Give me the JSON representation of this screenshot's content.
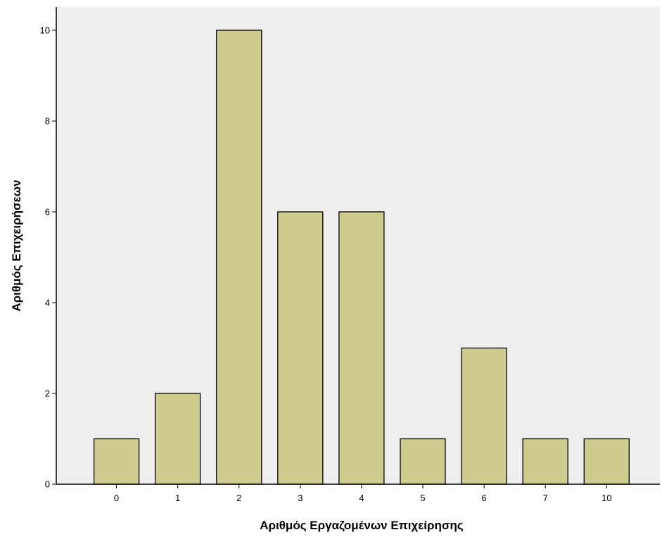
{
  "chart_data": {
    "type": "bar",
    "title": "",
    "xlabel": "Αριθμός Εργαζομένων Επιχείρησης",
    "ylabel": "Αριθμός Επιχειρήσεων",
    "categories": [
      "0",
      "1",
      "2",
      "3",
      "4",
      "5",
      "6",
      "7",
      "10"
    ],
    "values": [
      1,
      2,
      10,
      6,
      6,
      1,
      3,
      1,
      1
    ],
    "ylim": [
      0,
      10
    ],
    "yticks": [
      "0",
      "2",
      "4",
      "6",
      "8",
      "10"
    ],
    "grid": false,
    "colors": {
      "bar_fill": "#cfcc8f",
      "bar_stroke": "#000000",
      "plot_background": "#eeeeee"
    }
  }
}
